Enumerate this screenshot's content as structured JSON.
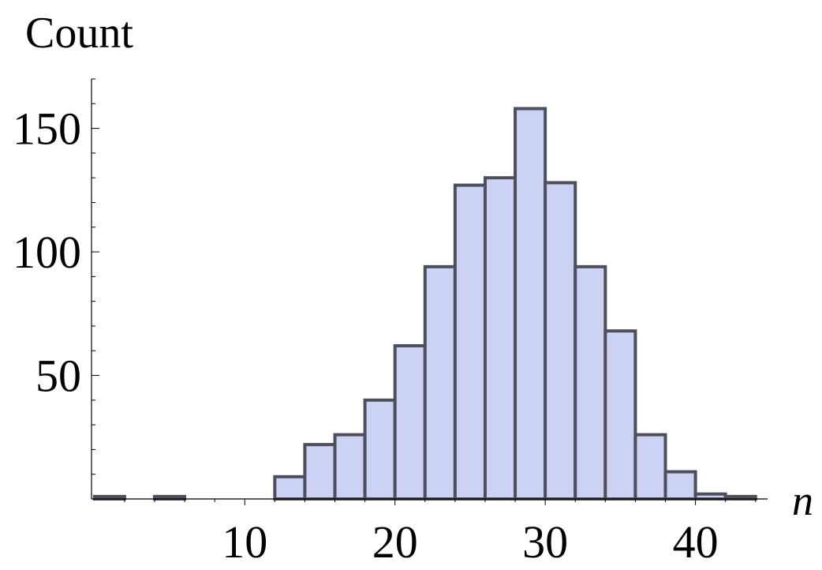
{
  "chart_data": {
    "type": "bar",
    "title": "",
    "ylabel": "Count",
    "xlabel": "n",
    "xlim": [
      -0.2,
      44.8
    ],
    "ylim": [
      0,
      170
    ],
    "xticks": [
      10,
      20,
      30,
      40
    ],
    "yticks": [
      50,
      100,
      150
    ],
    "bin_width": 2,
    "bins": [
      {
        "x0": 0,
        "x1": 2,
        "count": 1
      },
      {
        "x0": 4,
        "x1": 6,
        "count": 1
      },
      {
        "x0": 12,
        "x1": 14,
        "count": 9
      },
      {
        "x0": 14,
        "x1": 16,
        "count": 22
      },
      {
        "x0": 16,
        "x1": 18,
        "count": 26
      },
      {
        "x0": 18,
        "x1": 20,
        "count": 40
      },
      {
        "x0": 20,
        "x1": 22,
        "count": 62
      },
      {
        "x0": 22,
        "x1": 24,
        "count": 94
      },
      {
        "x0": 24,
        "x1": 26,
        "count": 127
      },
      {
        "x0": 26,
        "x1": 28,
        "count": 130
      },
      {
        "x0": 28,
        "x1": 30,
        "count": 158
      },
      {
        "x0": 30,
        "x1": 32,
        "count": 128
      },
      {
        "x0": 32,
        "x1": 34,
        "count": 94
      },
      {
        "x0": 34,
        "x1": 36,
        "count": 68
      },
      {
        "x0": 36,
        "x1": 38,
        "count": 26
      },
      {
        "x0": 38,
        "x1": 40,
        "count": 11
      },
      {
        "x0": 40,
        "x1": 42,
        "count": 2
      },
      {
        "x0": 42,
        "x1": 44,
        "count": 1
      }
    ],
    "bar_fill": "#ccd2f4",
    "bar_stroke": "#4d4f5c",
    "grid": false
  }
}
